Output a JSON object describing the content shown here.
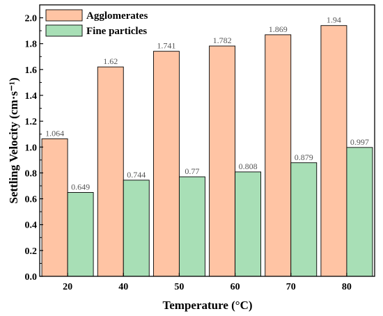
{
  "chart_data": {
    "type": "bar",
    "title": "",
    "xlabel": "Temperature (°C)",
    "ylabel": "Settling Velocity (cm·s⁻¹)",
    "categories": [
      "20",
      "40",
      "50",
      "60",
      "70",
      "80"
    ],
    "series": [
      {
        "name": "Agglomerates",
        "values": [
          1.064,
          1.62,
          1.741,
          1.782,
          1.869,
          1.94
        ],
        "labels": [
          "1.064",
          "1.62",
          "1.741",
          "1.782",
          "1.869",
          "1.94"
        ],
        "color": "#FFC4A4"
      },
      {
        "name": "Fine particles",
        "values": [
          0.649,
          0.744,
          0.77,
          0.808,
          0.879,
          0.997
        ],
        "labels": [
          "0.649",
          "0.744",
          "0.77",
          "0.808",
          "0.879",
          "0.997"
        ],
        "color": "#A8DFB6"
      }
    ],
    "ylim": [
      0,
      2.1
    ],
    "yticks": [
      "0.0",
      "0.2",
      "0.4",
      "0.6",
      "0.8",
      "1.0",
      "1.2",
      "1.4",
      "1.6",
      "1.8",
      "2.0"
    ],
    "grid": false,
    "legend_position": "top-left"
  }
}
